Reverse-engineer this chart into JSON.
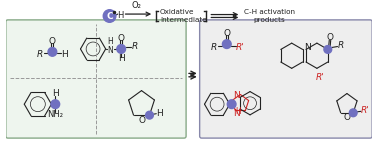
{
  "bg_color": "#ffffff",
  "purple": "#7070c0",
  "red": "#cc2222",
  "black": "#222222",
  "gray": "#999999",
  "left_box_edge": "#88aa88",
  "left_box_face": "#eef5ee",
  "right_box_edge": "#8888aa",
  "right_box_face": "#eeeeee",
  "o2_text": "O₂",
  "oxidative_text": "Oxidative\nIntermediate",
  "ch_text": "C-H activation\nproducts"
}
